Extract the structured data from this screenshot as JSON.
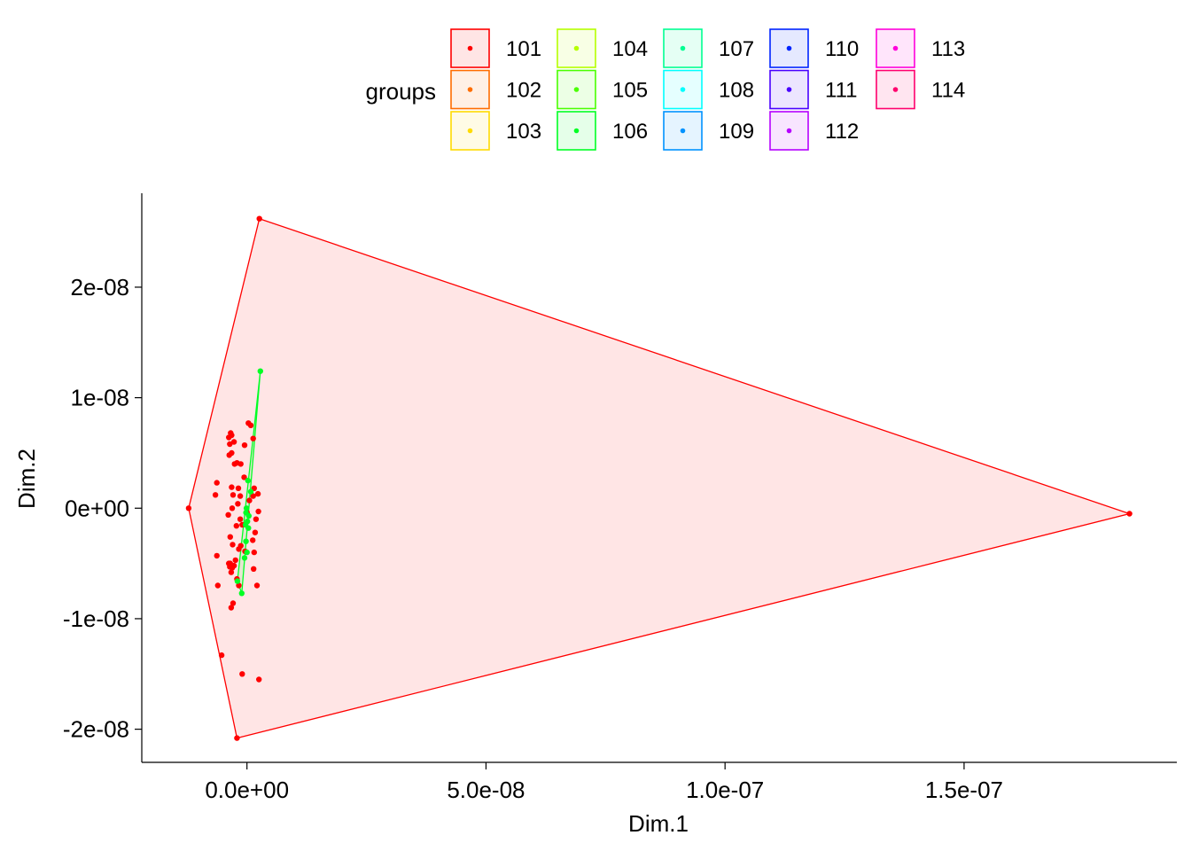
{
  "chart_data": {
    "type": "scatter",
    "xlabel": "Dim.1",
    "ylabel": "Dim.2",
    "xlim": [
      -2.2e-08,
      1.945e-07
    ],
    "ylim": [
      -2.3e-08,
      2.85e-08
    ],
    "x_ticks": [
      0,
      5e-08,
      1e-07,
      1.5e-07
    ],
    "x_tick_labels": [
      "0.0e+00",
      "5.0e-08",
      "1.0e-07",
      "1.5e-07"
    ],
    "y_ticks": [
      -2e-08,
      -1e-08,
      0,
      1e-08,
      2e-08
    ],
    "y_tick_labels": [
      "-2e-08",
      "-1e-08",
      "0e+00",
      "1e-08",
      "2e-08"
    ],
    "grid": false,
    "legend": {
      "title": "groups",
      "position": "top",
      "entries": [
        {
          "name": "101",
          "color": "#FF0000"
        },
        {
          "name": "102",
          "color": "#FF6D00"
        },
        {
          "name": "103",
          "color": "#FFDB00"
        },
        {
          "name": "104",
          "color": "#B6FF00"
        },
        {
          "name": "105",
          "color": "#49FF00"
        },
        {
          "name": "106",
          "color": "#00FF24"
        },
        {
          "name": "107",
          "color": "#00FF92"
        },
        {
          "name": "108",
          "color": "#00FFFF"
        },
        {
          "name": "109",
          "color": "#0092FF"
        },
        {
          "name": "110",
          "color": "#0024FF"
        },
        {
          "name": "111",
          "color": "#4900FF"
        },
        {
          "name": "112",
          "color": "#B600FF"
        },
        {
          "name": "113",
          "color": "#FF00DB"
        },
        {
          "name": "114",
          "color": "#FF006D"
        }
      ]
    },
    "series": [
      {
        "name": "101",
        "color": "#FF0000",
        "hull": [
          [
            -1.22e-08,
            0.0
          ],
          [
            2.6e-09,
            2.62e-08
          ],
          [
            1.846e-07,
            -5e-10
          ],
          [
            -2.1e-09,
            -2.08e-08
          ]
        ],
        "points": [
          [
            -1.22e-08,
            0.0
          ],
          [
            2.6e-09,
            2.62e-08
          ],
          [
            1.846e-07,
            -5e-10
          ],
          [
            -2.1e-09,
            -2.08e-08
          ],
          [
            -5.3e-09,
            -1.33e-08
          ],
          [
            -1e-09,
            -1.5e-08
          ],
          [
            2.5e-09,
            -1.55e-08
          ],
          [
            -3.3e-09,
            -9e-09
          ],
          [
            -2.9e-09,
            -8.6e-09
          ],
          [
            -6.1e-09,
            -7e-09
          ],
          [
            -1.7e-09,
            -7e-09
          ],
          [
            2.1e-09,
            -7e-09
          ],
          [
            -6.3e-09,
            -4.3e-09
          ],
          [
            1.5e-09,
            -4e-09
          ],
          [
            -3.5e-09,
            -2.6e-09
          ],
          [
            -1.7e-09,
            -3.7e-09
          ],
          [
            -3.5e-09,
            -5e-09
          ],
          [
            -3.1e-09,
            -5.4e-09
          ],
          [
            -2.7e-09,
            -5.2e-09
          ],
          [
            -3.8e-09,
            -5e-09
          ],
          [
            -3.3e-09,
            -5.8e-09
          ],
          [
            -2.4e-09,
            -4.7e-09
          ],
          [
            1.2e-09,
            -2.9e-09
          ],
          [
            1.7e-09,
            -2.2e-09
          ],
          [
            1.9e-09,
            -1e-09
          ],
          [
            -3.9e-09,
            -6e-10
          ],
          [
            -3.1e-09,
            0.0
          ],
          [
            -1.9e-09,
            4e-10
          ],
          [
            -1.4e-09,
            1.1e-09
          ],
          [
            -3.2e-09,
            1.9e-09
          ],
          [
            -1.8e-09,
            1.8e-09
          ],
          [
            -6.3e-09,
            2.3e-09
          ],
          [
            -6.6e-09,
            1.2e-09
          ],
          [
            -2.9e-09,
            1.2e-09
          ],
          [
            2.3e-09,
            1.3e-09
          ],
          [
            1.5e-09,
            1.8e-09
          ],
          [
            2.4e-09,
            -3e-10
          ],
          [
            -1e-09,
            -1.5e-09
          ],
          [
            -1.4e-09,
            -1e-09
          ],
          [
            -2.2e-09,
            -1.6e-09
          ],
          [
            -1.3e-09,
            4e-09
          ],
          [
            -2.1e-09,
            4.1e-09
          ],
          [
            -2.6e-09,
            4e-09
          ],
          [
            -3.2e-09,
            5e-09
          ],
          [
            -3.6e-09,
            5.8e-09
          ],
          [
            -3.8e-09,
            6.4e-09
          ],
          [
            -3.2e-09,
            6.6e-09
          ],
          [
            -3.4e-09,
            6.8e-09
          ],
          [
            -2.7e-09,
            6e-09
          ],
          [
            3e-10,
            7.7e-09
          ],
          [
            8e-10,
            7.5e-09
          ],
          [
            1.3e-09,
            6.3e-09
          ],
          [
            -5e-10,
            5.7e-09
          ],
          [
            -3.7e-09,
            4.8e-09
          ],
          [
            -6e-10,
            2.8e-09
          ],
          [
            5e-10,
            7e-10
          ],
          [
            0.0,
            -4e-10
          ],
          [
            -1.3e-09,
            -3.4e-09
          ],
          [
            -2.1e-09,
            -6.4e-09
          ],
          [
            -4e-10,
            -3.9e-09
          ],
          [
            -3e-09,
            -3.3e-09
          ],
          [
            1.4e-09,
            -5.5e-09
          ],
          [
            -3.6e-09,
            -5.3e-09
          ],
          [
            1.3e-09,
            1.1e-09
          ]
        ]
      },
      {
        "name": "106",
        "color": "#00FF24",
        "hull": [
          [
            2.8e-09,
            1.24e-08
          ],
          [
            -1.1e-09,
            -7.7e-09
          ],
          [
            -2e-09,
            -6.6e-09
          ]
        ],
        "points": [
          [
            2.8e-09,
            1.24e-08
          ],
          [
            -1.1e-09,
            -7.7e-09
          ],
          [
            -2e-09,
            -6.6e-09
          ],
          [
            2e-10,
            2.5e-09
          ],
          [
            8e-10,
            1.5e-09
          ],
          [
            -1e-10,
            0.0
          ],
          [
            4e-10,
            -7e-10
          ],
          [
            -3e-10,
            -1.5e-09
          ],
          [
            1e-10,
            -1.2e-09
          ],
          [
            -2e-10,
            -4e-10
          ],
          [
            0.0,
            -4e-09
          ],
          [
            -5e-10,
            -4.5e-09
          ],
          [
            -2e-10,
            -3e-09
          ],
          [
            3e-10,
            -1.8e-09
          ]
        ]
      }
    ]
  }
}
